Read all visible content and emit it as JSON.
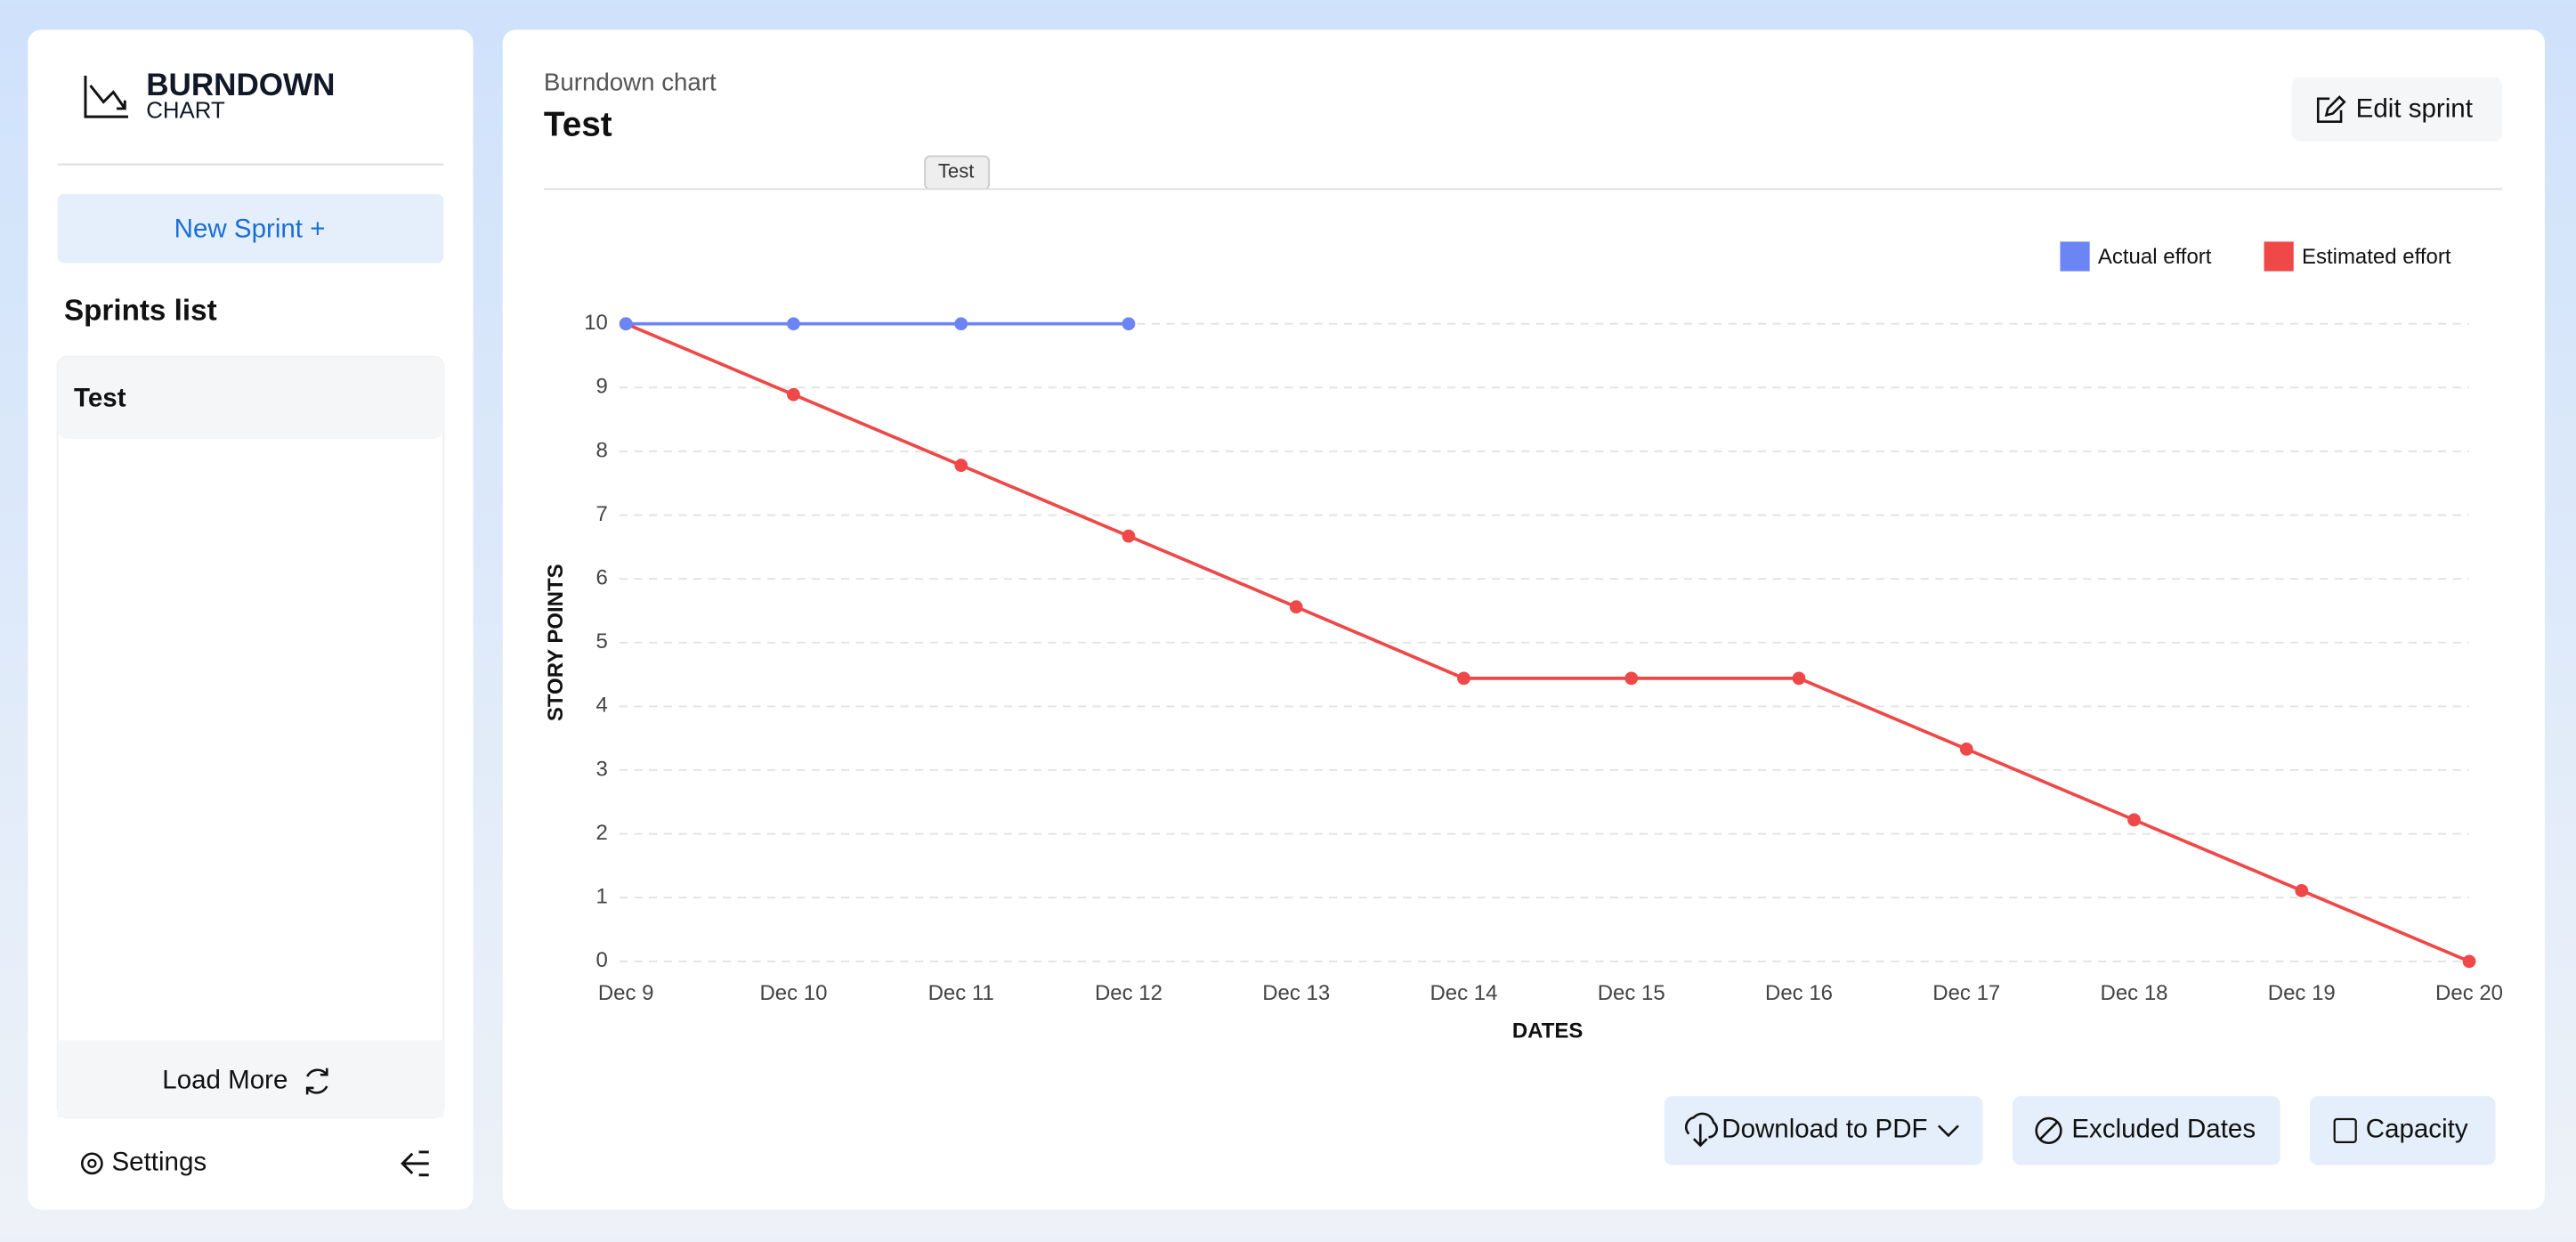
{
  "sidebar": {
    "logo_title": "BURNDOWN",
    "logo_subtitle": "CHART",
    "new_sprint": "New Sprint +",
    "list_title": "Sprints list",
    "sprints": [
      "Test"
    ],
    "load_more": "Load More",
    "settings": "Settings"
  },
  "header": {
    "subtitle": "Burndown chart",
    "title": "Test",
    "edit": "Edit sprint",
    "tooltip": "Test"
  },
  "buttons": [
    "Download to PDF",
    "Excluded Dates",
    "Capacity"
  ],
  "chart_data": {
    "type": "line",
    "categories": [
      "Dec 9",
      "Dec 10",
      "Dec 11",
      "Dec 12",
      "Dec 13",
      "Dec 14",
      "Dec 15",
      "Dec 16",
      "Dec 17",
      "Dec 18",
      "Dec 19",
      "Dec 20"
    ],
    "series": [
      {
        "name": "Actual effort",
        "color": "#6b85f5",
        "values": [
          10,
          10,
          10,
          10,
          null,
          null,
          null,
          null,
          null,
          null,
          null,
          null
        ]
      },
      {
        "name": "Estimated effort",
        "color": "#ef4848",
        "values": [
          10,
          8.89,
          7.78,
          6.67,
          5.56,
          4.44,
          4.44,
          4.44,
          3.33,
          2.22,
          1.11,
          0
        ]
      }
    ],
    "xlabel": "DATES",
    "ylabel": "STORY POINTS",
    "ylim": [
      0,
      10
    ],
    "yticks": [
      0,
      1,
      2,
      3,
      4,
      5,
      6,
      7,
      8,
      9,
      10
    ],
    "grid": true,
    "legend": "top-right"
  }
}
